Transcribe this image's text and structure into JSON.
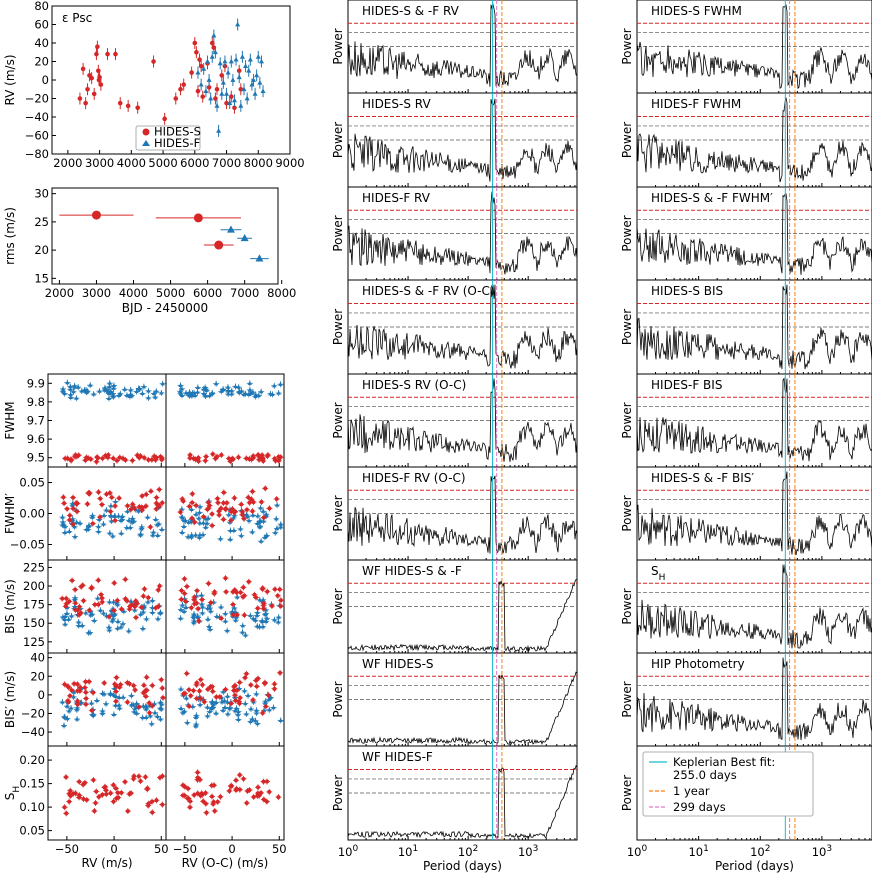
{
  "colors": {
    "hides_s": "#d62728",
    "hides_f": "#1f77b4",
    "kepler": "#17becf",
    "year": "#ff7f0e",
    "p299": "#e377c2",
    "sig_red": "#d62728",
    "sig_gray": "#7f7f7f"
  },
  "chart_data": [
    {
      "id": "rv_time",
      "type": "scatter",
      "annotation": "ε Psc",
      "xlim": [
        1500,
        9000
      ],
      "ylim": [
        -80,
        80
      ],
      "xticks": [
        "2000",
        "3000",
        "4000",
        "5000",
        "6000",
        "7000",
        "8000",
        "9000"
      ],
      "yticks": [
        "−80",
        "−60",
        "−40",
        "−20",
        "0",
        "20",
        "40",
        "60",
        "80"
      ],
      "ylabel": "RV (m/s)",
      "legend": {
        "position": "lower-center",
        "entries": [
          "HIDES-S",
          "HIDES-F"
        ]
      },
      "series": [
        {
          "name": "HIDES-S",
          "marker": "circle",
          "points": [
            [
              2380,
              -20
            ],
            [
              2480,
              12
            ],
            [
              2560,
              -25
            ],
            [
              2620,
              -10
            ],
            [
              2680,
              5
            ],
            [
              2750,
              2
            ],
            [
              2830,
              -15
            ],
            [
              2900,
              28
            ],
            [
              2930,
              36
            ],
            [
              2960,
              10
            ],
            [
              2980,
              0
            ],
            [
              3000,
              3
            ],
            [
              3040,
              -5
            ],
            [
              3250,
              28
            ],
            [
              3500,
              28
            ],
            [
              3650,
              -25
            ],
            [
              3900,
              -28
            ],
            [
              4200,
              -30
            ],
            [
              4700,
              20
            ],
            [
              5050,
              -42
            ],
            [
              5400,
              -20
            ],
            [
              5550,
              -10
            ],
            [
              5650,
              -5
            ],
            [
              5900,
              8
            ],
            [
              6000,
              40
            ],
            [
              6050,
              30
            ],
            [
              6100,
              -12
            ],
            [
              6150,
              22
            ],
            [
              6200,
              15
            ],
            [
              6250,
              -18
            ],
            [
              6400,
              18
            ],
            [
              6450,
              -8
            ],
            [
              6550,
              40
            ],
            [
              6600,
              35
            ],
            [
              6650,
              -20
            ],
            [
              6700,
              -10
            ],
            [
              6850,
              5
            ],
            [
              6950,
              15
            ],
            [
              7000,
              -25
            ],
            [
              7150,
              -18
            ],
            [
              7250,
              -30
            ],
            [
              7400,
              10
            ],
            [
              7450,
              -10
            ]
          ]
        },
        {
          "name": "HIDES-F",
          "marker": "triangle",
          "points": [
            [
              6100,
              8
            ],
            [
              6200,
              -5
            ],
            [
              6280,
              12
            ],
            [
              6350,
              -12
            ],
            [
              6400,
              20
            ],
            [
              6450,
              0
            ],
            [
              6500,
              -20
            ],
            [
              6550,
              25
            ],
            [
              6600,
              48
            ],
            [
              6650,
              30
            ],
            [
              6700,
              -28
            ],
            [
              6750,
              -55
            ],
            [
              6800,
              18
            ],
            [
              6850,
              -15
            ],
            [
              6900,
              -3
            ],
            [
              6950,
              20
            ],
            [
              7000,
              -15
            ],
            [
              7050,
              8
            ],
            [
              7100,
              -25
            ],
            [
              7150,
              20
            ],
            [
              7200,
              0
            ],
            [
              7250,
              -22
            ],
            [
              7300,
              22
            ],
            [
              7350,
              60
            ],
            [
              7400,
              3
            ],
            [
              7450,
              -28
            ],
            [
              7500,
              25
            ],
            [
              7550,
              -10
            ],
            [
              7600,
              15
            ],
            [
              7650,
              -20
            ],
            [
              7700,
              10
            ],
            [
              7750,
              22
            ],
            [
              7800,
              -5
            ],
            [
              7850,
              0
            ],
            [
              7900,
              -15
            ],
            [
              7950,
              5
            ],
            [
              8000,
              25
            ],
            [
              8050,
              -3
            ],
            [
              8100,
              20
            ],
            [
              8150,
              -12
            ]
          ]
        }
      ]
    },
    {
      "id": "rms_time",
      "type": "scatter",
      "xlim": [
        1800,
        7900
      ],
      "ylim": [
        14,
        31
      ],
      "xticks": [
        "2000",
        "3000",
        "4000",
        "5000",
        "6000",
        "7000",
        "8000"
      ],
      "yticks": [
        "15",
        "20",
        "25",
        "30"
      ],
      "xlabel": "BJD - 2450000",
      "ylabel": "rms (m/s)",
      "series": [
        {
          "name": "HIDES-S",
          "marker": "circle",
          "points": [
            [
              3000,
              26.2,
              1000
            ],
            [
              5750,
              25.7,
              1150
            ],
            [
              6300,
              20.9,
              400
            ]
          ]
        },
        {
          "name": "HIDES-F",
          "marker": "triangle",
          "points": [
            [
              6630,
              23.6,
              280
            ],
            [
              7000,
              22.1,
              200
            ],
            [
              7400,
              18.5,
              250
            ]
          ]
        }
      ]
    }
  ],
  "scatter_grid": {
    "columns": [
      {
        "xlabel": "RV (m/s)"
      },
      {
        "xlabel": "RV (O-C) (m/s)"
      }
    ],
    "xticks": [
      "−50",
      "0",
      "50"
    ],
    "rows": [
      {
        "ylabel": "FWHM",
        "ylim": [
          9.45,
          9.95
        ],
        "yticks": [
          "9.5",
          "9.6",
          "9.7",
          "9.8",
          "9.9"
        ]
      },
      {
        "ylabel": "FWHM′",
        "ylim": [
          -0.075,
          0.075
        ],
        "yticks": [
          "−0.05",
          "0.00",
          "0.05"
        ]
      },
      {
        "ylabel": "BIS (m/s)",
        "ylim": [
          110,
          235
        ],
        "yticks": [
          "125",
          "150",
          "175",
          "200",
          "225"
        ]
      },
      {
        "ylabel": "BIS′ (m/s)",
        "ylim": [
          -55,
          45
        ],
        "yticks": [
          "−40",
          "−20",
          "0",
          "20",
          "40"
        ]
      },
      {
        "ylabel": "S_H",
        "ylim": [
          0.03,
          0.23
        ],
        "yticks": [
          "0.05",
          "0.10",
          "0.15",
          "0.20"
        ]
      }
    ]
  },
  "periodograms": {
    "xlabel": "Period (days)",
    "ylabel": "Power",
    "xticks": [
      "10^0",
      "10^1",
      "10^2",
      "10^3"
    ],
    "left_panels": [
      "HIDES-S & -F RV",
      "HIDES-S RV",
      "HIDES-F RV",
      "HIDES-S & -F RV (O-C)",
      "HIDES-S RV (O-C)",
      "HIDES-F RV (O-C)",
      "WF HIDES-S & -F",
      "WF HIDES-S",
      "WF HIDES-F"
    ],
    "right_panels": [
      "HIDES-S FWHM",
      "HIDES-F FWHM",
      "HIDES-S & -F FWHM′",
      "HIDES-S BIS",
      "HIDES-F BIS",
      "HIDES-S & -F BIS′",
      "S_H",
      "HIP Photometry"
    ],
    "vlines_days": {
      "kepler": 255.0,
      "year": 365.25,
      "p299": 299
    },
    "legend": {
      "position": "bottom-right panel",
      "entries": [
        "Keplerian Best fit:",
        "255.0 days",
        "1 year",
        "299 days"
      ]
    }
  }
}
